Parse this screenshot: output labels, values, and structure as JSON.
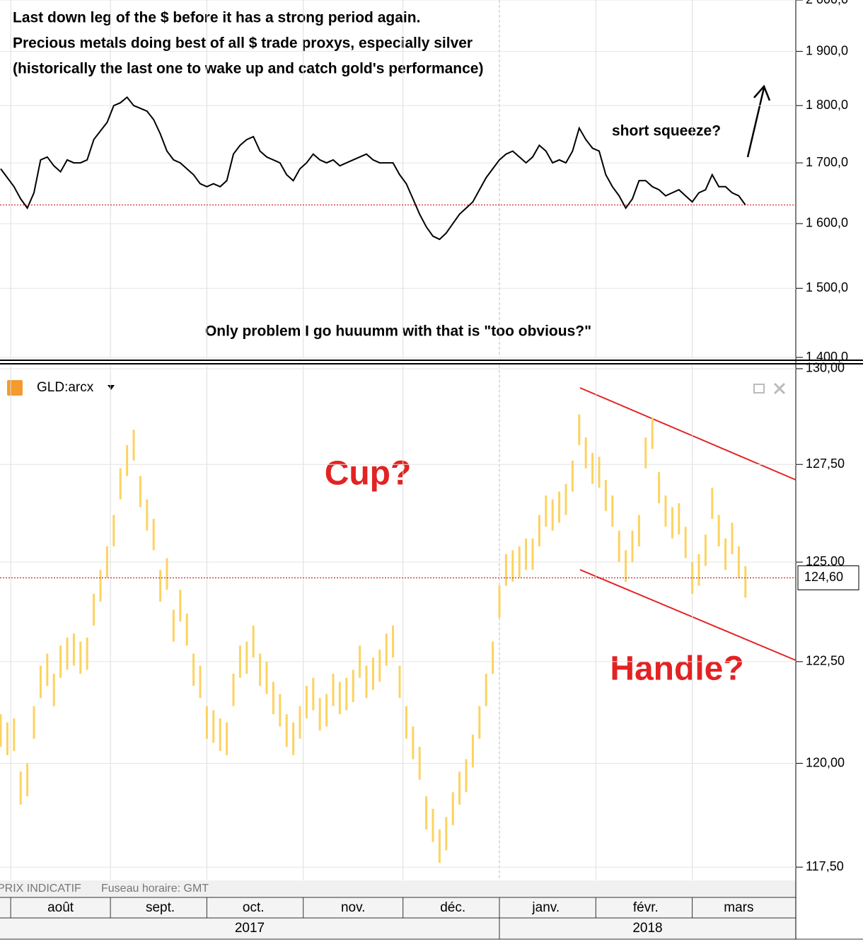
{
  "chart_data": [
    {
      "type": "line",
      "log_scale": true,
      "color": "#000000",
      "annotations": [
        "Last down leg of the $ before it has a strong period again.",
        "Precious metals doing best of all $ trade proxys, especially silver",
        "(historically the last one to wake up and catch gold's performance)",
        "short squeeze?",
        "Only problem I go huuumm with that is \"too obvious?\""
      ],
      "ylim": [
        1400,
        2000
      ],
      "yticks": [
        {
          "value": 1400,
          "label": "1 400,0"
        },
        {
          "value": 1500,
          "label": "1 500,0"
        },
        {
          "value": 1600,
          "label": "1 600,0"
        },
        {
          "value": 1700,
          "label": "1 700,0"
        },
        {
          "value": 1800,
          "label": "1 800,0"
        },
        {
          "value": 1900,
          "label": "1 900,0"
        },
        {
          "value": 2000,
          "label": "2 000,0"
        }
      ],
      "last_value": 1630,
      "series": [
        {
          "color": "#000000",
          "values": [
            1690,
            1675,
            1660,
            1640,
            1625,
            1650,
            1705,
            1710,
            1695,
            1685,
            1705,
            1700,
            1700,
            1705,
            1740,
            1755,
            1770,
            1800,
            1805,
            1815,
            1800,
            1795,
            1790,
            1775,
            1750,
            1720,
            1705,
            1700,
            1690,
            1680,
            1665,
            1660,
            1665,
            1660,
            1670,
            1715,
            1730,
            1740,
            1745,
            1720,
            1710,
            1705,
            1700,
            1680,
            1670,
            1690,
            1700,
            1715,
            1705,
            1700,
            1705,
            1695,
            1700,
            1705,
            1710,
            1715,
            1705,
            1700,
            1700,
            1700,
            1680,
            1665,
            1640,
            1615,
            1595,
            1580,
            1575,
            1585,
            1600,
            1615,
            1625,
            1635,
            1655,
            1675,
            1690,
            1705,
            1715,
            1720,
            1710,
            1700,
            1710,
            1730,
            1720,
            1700,
            1705,
            1700,
            1720,
            1760,
            1740,
            1725,
            1720,
            1680,
            1660,
            1645,
            1625,
            1640,
            1670,
            1670,
            1660,
            1655,
            1645,
            1650,
            1655,
            1645,
            1635,
            1650,
            1655,
            1680,
            1660,
            1660,
            1650,
            1645,
            1630
          ]
        }
      ]
    },
    {
      "type": "range",
      "log_scale": true,
      "annotations": [
        "Cup?",
        "Handle?"
      ],
      "ylim": [
        117.2,
        130.1
      ],
      "yticks": [
        {
          "value": 117.5,
          "label": "117,50"
        },
        {
          "value": 120,
          "label": "120,00"
        },
        {
          "value": 122.5,
          "label": "122,50"
        },
        {
          "value": 125,
          "label": "125,00"
        },
        {
          "value": 127.5,
          "label": "127,50"
        },
        {
          "value": 130,
          "label": "130,00"
        }
      ],
      "last_value": {
        "value": 124.6,
        "label": "124,60"
      },
      "categories": [
        null,
        null,
        null,
        null,
        null,
        null,
        null,
        null,
        null,
        "août",
        null,
        null,
        null,
        null,
        null,
        null,
        null,
        null,
        null,
        null,
        null,
        null,
        null,
        null,
        "sept.",
        null,
        null,
        null,
        null,
        null,
        null,
        null,
        null,
        null,
        null,
        null,
        null,
        null,
        "oct.",
        null,
        null,
        null,
        null,
        null,
        null,
        null,
        null,
        null,
        null,
        null,
        null,
        null,
        null,
        "nov.",
        null,
        null,
        null,
        null,
        null,
        null,
        null,
        null,
        null,
        null,
        null,
        null,
        null,
        null,
        "déc.",
        null,
        null,
        null,
        null,
        null,
        null,
        null,
        null,
        null,
        null,
        null,
        null,
        null,
        "janv.",
        null,
        null,
        null,
        null,
        null,
        null,
        null,
        null,
        null,
        null,
        null,
        null,
        null,
        null,
        "févr.",
        null,
        null,
        null,
        null,
        null,
        null,
        null,
        null,
        null,
        null,
        null,
        null,
        null,
        "mars",
        null
      ],
      "x_groups": [
        "2017",
        "2018"
      ],
      "series": [
        {
          "name": "GLD:arcx",
          "color": "#fcd361",
          "high": [
            121.2,
            121.0,
            121.1,
            119.8,
            120.0,
            121.4,
            122.4,
            122.7,
            122.2,
            122.9,
            123.1,
            123.2,
            123.0,
            123.1,
            124.2,
            124.8,
            125.4,
            126.2,
            127.4,
            128.0,
            128.4,
            127.2,
            126.6,
            126.1,
            124.8,
            125.1,
            123.8,
            124.3,
            123.7,
            122.7,
            122.4,
            121.4,
            121.3,
            121.1,
            121.0,
            122.2,
            122.9,
            123.0,
            123.4,
            122.7,
            122.5,
            122.0,
            121.7,
            121.2,
            121.0,
            121.4,
            121.9,
            122.1,
            121.6,
            121.7,
            122.2,
            122.0,
            122.1,
            122.3,
            122.9,
            122.4,
            122.6,
            122.8,
            123.2,
            123.4,
            122.4,
            121.4,
            120.9,
            120.4,
            119.2,
            118.9,
            118.4,
            118.7,
            119.3,
            119.8,
            120.1,
            120.7,
            121.4,
            122.2,
            123.0,
            124.4,
            125.2,
            125.3,
            125.4,
            125.6,
            125.6,
            126.2,
            126.7,
            126.6,
            126.8,
            127.0,
            127.6,
            128.8,
            128.2,
            127.8,
            127.7,
            127.1,
            126.7,
            125.8,
            125.3,
            125.8,
            126.2,
            128.2,
            128.7,
            127.3,
            126.7,
            126.4,
            126.5,
            125.9,
            125.0,
            125.2,
            125.7,
            126.9,
            126.2,
            125.6,
            126.0,
            125.4,
            124.9
          ],
          "low": [
            120.4,
            120.2,
            120.3,
            119.0,
            119.2,
            120.6,
            121.6,
            121.9,
            121.4,
            122.1,
            122.3,
            122.4,
            122.2,
            122.3,
            123.4,
            124.0,
            124.6,
            125.4,
            126.6,
            127.2,
            127.6,
            126.4,
            125.8,
            125.3,
            124.0,
            124.3,
            123.0,
            123.5,
            122.9,
            121.9,
            121.6,
            120.6,
            120.5,
            120.3,
            120.2,
            121.4,
            122.1,
            122.2,
            122.6,
            121.9,
            121.7,
            121.2,
            120.9,
            120.4,
            120.2,
            120.6,
            121.1,
            121.3,
            120.8,
            120.9,
            121.4,
            121.2,
            121.3,
            121.5,
            122.1,
            121.6,
            121.8,
            122.0,
            122.4,
            122.6,
            121.6,
            120.6,
            120.1,
            119.6,
            118.4,
            118.1,
            117.6,
            117.9,
            118.5,
            119.0,
            119.3,
            119.9,
            120.6,
            121.4,
            122.2,
            123.6,
            124.4,
            124.5,
            124.6,
            124.8,
            124.8,
            125.4,
            125.9,
            125.8,
            126.0,
            126.2,
            126.8,
            128.0,
            127.4,
            127.0,
            126.9,
            126.3,
            125.9,
            125.0,
            124.5,
            125.0,
            125.4,
            127.4,
            127.9,
            126.5,
            125.9,
            125.6,
            125.7,
            125.1,
            124.2,
            124.4,
            124.9,
            126.1,
            125.4,
            124.8,
            125.2,
            124.6,
            124.1
          ]
        }
      ]
    }
  ],
  "footer": [
    "PRIX INDICATIF",
    "Fuseau horaire: GMT"
  ]
}
